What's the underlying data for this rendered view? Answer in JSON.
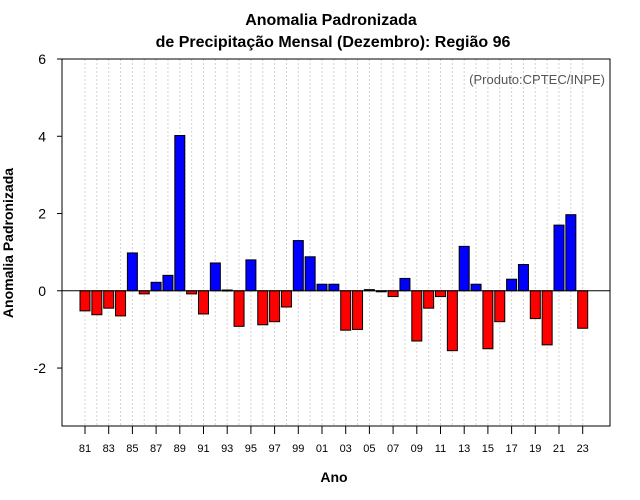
{
  "chart_data": {
    "type": "bar",
    "title_line1": "Anomalia Padronizada",
    "title_line2": "de Precipitação Mensal (Dezembro): Região 96",
    "xlabel": "Ano",
    "ylabel": "Anomalia Padronizada",
    "annotation": "(Produto:CPTEC/INPE)",
    "ylim": [
      -3.5,
      6
    ],
    "yticks": [
      -2,
      0,
      2,
      4,
      6
    ],
    "positive_color": "#0000ff",
    "negative_color": "#ff0000",
    "categories": [
      "81",
      "82",
      "83",
      "84",
      "85",
      "86",
      "87",
      "88",
      "89",
      "90",
      "91",
      "92",
      "93",
      "94",
      "95",
      "96",
      "97",
      "98",
      "99",
      "00",
      "01",
      "02",
      "03",
      "04",
      "05",
      "06",
      "07",
      "08",
      "09",
      "10",
      "11",
      "12",
      "13",
      "14",
      "15",
      "16",
      "17",
      "18",
      "19",
      "20",
      "21",
      "22",
      "23"
    ],
    "xtick_labels": [
      "81",
      "83",
      "85",
      "87",
      "89",
      "91",
      "93",
      "95",
      "97",
      "99",
      "01",
      "03",
      "05",
      "07",
      "09",
      "11",
      "13",
      "15",
      "17",
      "19",
      "21",
      "23"
    ],
    "values": [
      -0.52,
      -0.62,
      -0.45,
      -0.65,
      0.98,
      -0.08,
      0.22,
      0.4,
      4.02,
      -0.08,
      -0.6,
      0.72,
      0.02,
      -0.92,
      0.8,
      -0.88,
      -0.8,
      -0.42,
      1.3,
      0.88,
      0.17,
      0.17,
      -1.02,
      -1.0,
      0.03,
      -0.02,
      -0.15,
      0.32,
      -1.3,
      -0.45,
      -0.15,
      -1.55,
      1.15,
      0.17,
      -1.5,
      -0.8,
      0.3,
      0.68,
      -0.72,
      -1.4,
      1.7,
      1.97,
      -0.97
    ]
  }
}
